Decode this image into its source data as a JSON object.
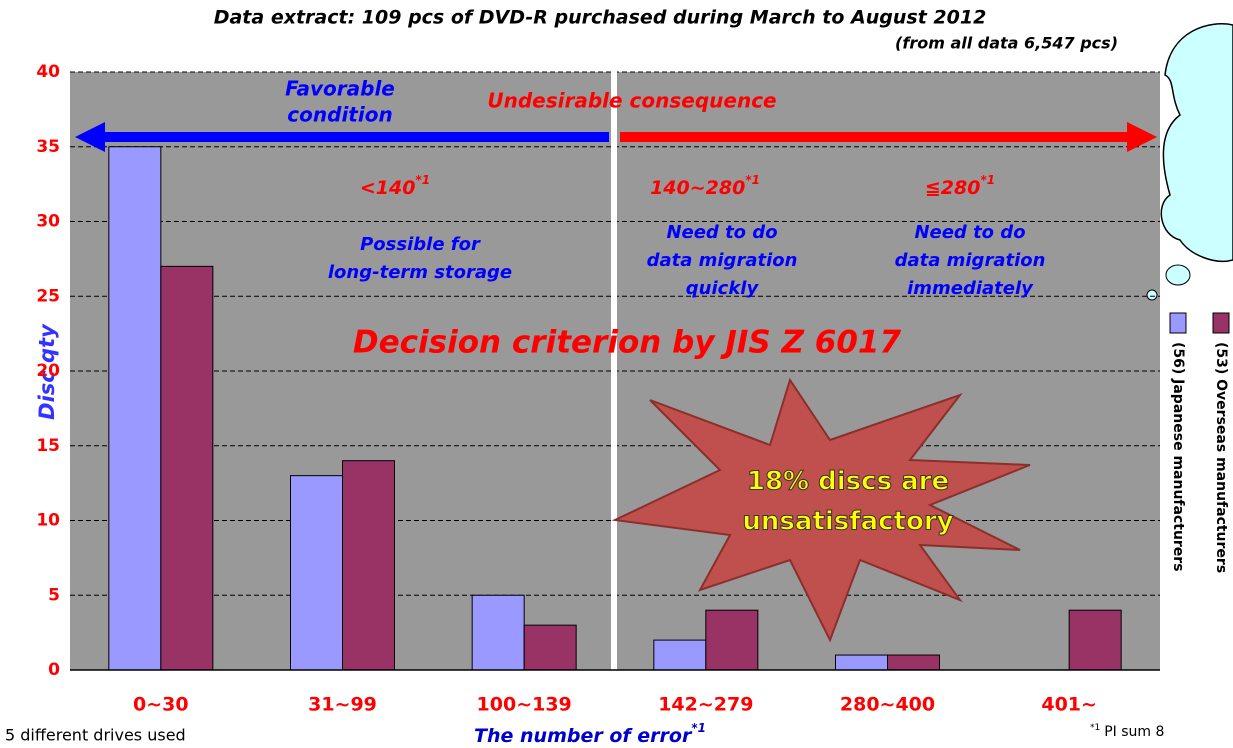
{
  "chart_data": {
    "type": "bar",
    "title": "Data extract: 109 pcs of DVD-R purchased during March to August 2012",
    "subtitle": "(from all data 6,547 pcs)",
    "y_label": "Disc qty",
    "x_label": {
      "text": "The number of error",
      "sup": "*1"
    },
    "categories": [
      "0~30",
      "31~99",
      "100~139",
      "142~279",
      "280~400",
      "401~"
    ],
    "series": [
      {
        "name": "(56) Japanese manufacturers",
        "color": "#9999ff",
        "values": [
          35,
          13,
          5,
          2,
          1,
          0
        ]
      },
      {
        "name": "(53) Overseas manufacturers",
        "color": "#993366",
        "values": [
          27,
          14,
          3,
          4,
          1,
          4
        ]
      }
    ],
    "ylim": [
      0,
      40
    ],
    "yticks": [
      0,
      5,
      10,
      15,
      20,
      25,
      30,
      35,
      40
    ],
    "grid": true,
    "annotations": [
      {
        "lines": [
          "Favorable",
          "condition"
        ]
      },
      {
        "lines": [
          "Undesirable consequence"
        ]
      },
      {
        "text": "<140",
        "sup": "*1"
      },
      {
        "text": "140~280",
        "sup": "*1"
      },
      {
        "text": "≦280",
        "sup": "*1"
      },
      {
        "lines": [
          "Possible for",
          "long-term storage"
        ]
      },
      {
        "lines": [
          "Need to do",
          "data migration",
          "quickly"
        ]
      },
      {
        "lines": [
          "Need to do",
          "data migration",
          "immediately"
        ]
      },
      {
        "lines": [
          "Decision criterion by JIS Z 6017"
        ]
      },
      {
        "lines": [
          "18% discs are",
          "unsatisfactory"
        ]
      }
    ],
    "footnotes": {
      "left": "5 different drives used",
      "right": {
        "mark": "*1",
        "text": "PI sum 8"
      }
    }
  }
}
